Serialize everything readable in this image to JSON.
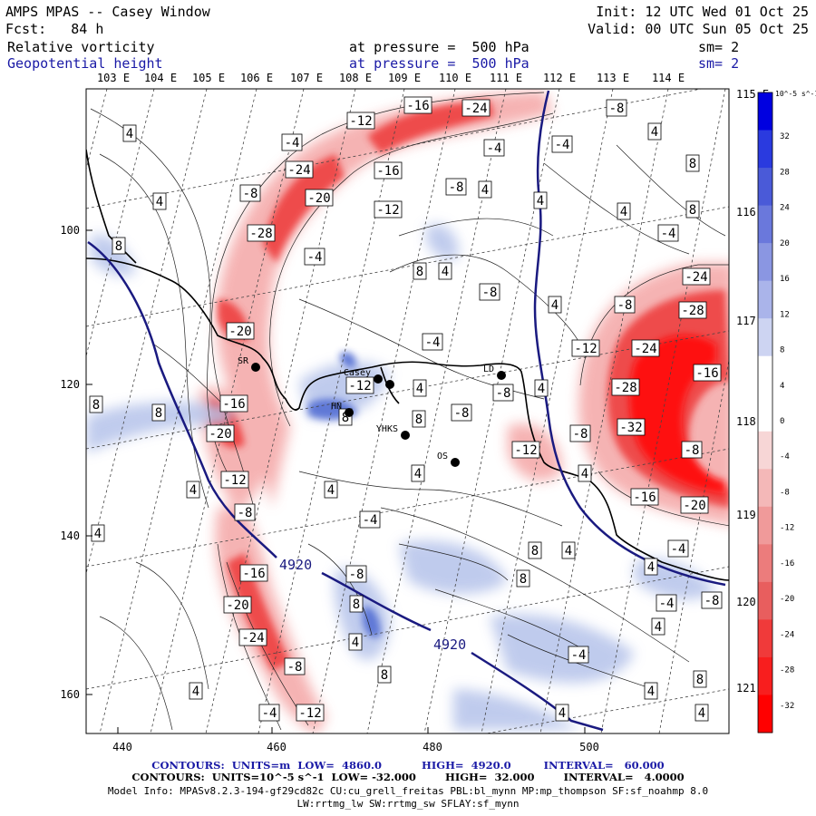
{
  "header": {
    "title": "AMPS MPAS -- Casey Window",
    "init": "Init: 12 UTC Wed 01 Oct 25",
    "fcst": "Fcst:   84 h",
    "valid": "Valid: 00 UTC Sun 05 Oct 25",
    "field1": "Relative vorticity",
    "field1_level": "at pressure =  500 hPa",
    "field1_sm": "sm= 2",
    "field2": "Geopotential height",
    "field2_level": "at pressure =  500 hPa",
    "field2_sm": "sm= 2"
  },
  "map": {
    "lon_labels_top": [
      "103 E",
      "104 E",
      "105 E",
      "106 E",
      "107 E",
      "108 E",
      "109 E",
      "110 E",
      "111 E",
      "112 E",
      "113 E",
      "114 E"
    ],
    "lon_labels_right": [
      "115 E",
      "116 E",
      "117 E",
      "118 E",
      "119 E",
      "120 E",
      "121 E"
    ],
    "x_ticks": [
      "440",
      "460",
      "480",
      "500"
    ],
    "y_ticks": [
      "100",
      "120",
      "140",
      "160"
    ],
    "height_contour_label": "4920",
    "stations": [
      {
        "name": "Casey",
        "x": 417,
        "y": 418
      },
      {
        "name": "",
        "x": 430,
        "y": 424
      },
      {
        "name": "HN",
        "x": 385,
        "y": 455
      },
      {
        "name": "YHKS",
        "x": 447,
        "y": 480
      },
      {
        "name": "OS",
        "x": 502,
        "y": 510
      },
      {
        "name": "LD",
        "x": 553,
        "y": 414
      },
      {
        "name": "SR",
        "x": 282,
        "y": 405
      }
    ],
    "box_labels": [
      {
        "t": "4",
        "x": 143,
        "y": 147
      },
      {
        "t": "4",
        "x": 176,
        "y": 222
      },
      {
        "t": "8",
        "x": 131,
        "y": 271
      },
      {
        "t": "-4",
        "x": 322,
        "y": 157
      },
      {
        "t": "-24",
        "x": 330,
        "y": 187
      },
      {
        "t": "-20",
        "x": 352,
        "y": 218
      },
      {
        "t": "-8",
        "x": 276,
        "y": 213
      },
      {
        "t": "-28",
        "x": 288,
        "y": 257
      },
      {
        "t": "-4",
        "x": 347,
        "y": 283
      },
      {
        "t": "-12",
        "x": 398,
        "y": 133
      },
      {
        "t": "-16",
        "x": 461,
        "y": 116
      },
      {
        "t": "-24",
        "x": 525,
        "y": 119
      },
      {
        "t": "-16",
        "x": 428,
        "y": 188
      },
      {
        "t": "-12",
        "x": 428,
        "y": 231
      },
      {
        "t": "-8",
        "x": 503,
        "y": 206
      },
      {
        "t": "4",
        "x": 535,
        "y": 209
      },
      {
        "t": "-4",
        "x": 545,
        "y": 163
      },
      {
        "t": "-4",
        "x": 620,
        "y": 159
      },
      {
        "t": "4",
        "x": 596,
        "y": 221
      },
      {
        "t": "-8",
        "x": 680,
        "y": 119
      },
      {
        "t": "4",
        "x": 722,
        "y": 145
      },
      {
        "t": "8",
        "x": 764,
        "y": 180
      },
      {
        "t": "4",
        "x": 688,
        "y": 233
      },
      {
        "t": "8",
        "x": 764,
        "y": 231
      },
      {
        "t": "-4",
        "x": 737,
        "y": 257
      },
      {
        "t": "8",
        "x": 463,
        "y": 299
      },
      {
        "t": "4",
        "x": 491,
        "y": 299
      },
      {
        "t": "-8",
        "x": 540,
        "y": 322
      },
      {
        "t": "4",
        "x": 612,
        "y": 336
      },
      {
        "t": "-8",
        "x": 689,
        "y": 336
      },
      {
        "t": "-24",
        "x": 768,
        "y": 305
      },
      {
        "t": "-28",
        "x": 764,
        "y": 342
      },
      {
        "t": "-20",
        "x": 265,
        "y": 365
      },
      {
        "t": "-4",
        "x": 477,
        "y": 377
      },
      {
        "t": "-12",
        "x": 646,
        "y": 384
      },
      {
        "t": "-24",
        "x": 712,
        "y": 384
      },
      {
        "t": "-16",
        "x": 780,
        "y": 411
      },
      {
        "t": "8",
        "x": 106,
        "y": 446
      },
      {
        "t": "8",
        "x": 175,
        "y": 455
      },
      {
        "t": "-16",
        "x": 258,
        "y": 445
      },
      {
        "t": "-20",
        "x": 243,
        "y": 478
      },
      {
        "t": "-12",
        "x": 397,
        "y": 425
      },
      {
        "t": "4",
        "x": 463,
        "y": 428
      },
      {
        "t": "8",
        "x": 381,
        "y": 460
      },
      {
        "t": "8",
        "x": 462,
        "y": 462
      },
      {
        "t": "-8",
        "x": 509,
        "y": 455
      },
      {
        "t": "-8",
        "x": 555,
        "y": 433
      },
      {
        "t": "4",
        "x": 597,
        "y": 428
      },
      {
        "t": "-28",
        "x": 690,
        "y": 427
      },
      {
        "t": "-32",
        "x": 696,
        "y": 471
      },
      {
        "t": "-8",
        "x": 640,
        "y": 478
      },
      {
        "t": "-12",
        "x": 580,
        "y": 496
      },
      {
        "t": "-8",
        "x": 763,
        "y": 496
      },
      {
        "t": "-12",
        "x": 259,
        "y": 529
      },
      {
        "t": "4",
        "x": 213,
        "y": 540
      },
      {
        "t": "4",
        "x": 365,
        "y": 540
      },
      {
        "t": "4",
        "x": 461,
        "y": 522
      },
      {
        "t": "4",
        "x": 645,
        "y": 522
      },
      {
        "t": "-16",
        "x": 711,
        "y": 548
      },
      {
        "t": "-20",
        "x": 766,
        "y": 557
      },
      {
        "t": "-8",
        "x": 270,
        "y": 565
      },
      {
        "t": "-4",
        "x": 408,
        "y": 573
      },
      {
        "t": "4",
        "x": 108,
        "y": 588
      },
      {
        "t": "8",
        "x": 590,
        "y": 607
      },
      {
        "t": "4",
        "x": 627,
        "y": 607
      },
      {
        "t": "-4",
        "x": 748,
        "y": 605
      },
      {
        "t": "4",
        "x": 718,
        "y": 625
      },
      {
        "t": "-16",
        "x": 280,
        "y": 632
      },
      {
        "t": "-8",
        "x": 393,
        "y": 633
      },
      {
        "t": "8",
        "x": 577,
        "y": 638
      },
      {
        "t": "-20",
        "x": 262,
        "y": 667
      },
      {
        "t": "8",
        "x": 393,
        "y": 666
      },
      {
        "t": "-4",
        "x": 735,
        "y": 665
      },
      {
        "t": "-8",
        "x": 785,
        "y": 662
      },
      {
        "t": "4",
        "x": 726,
        "y": 691
      },
      {
        "t": "-24",
        "x": 279,
        "y": 703
      },
      {
        "t": "4",
        "x": 392,
        "y": 708
      },
      {
        "t": "-4",
        "x": 638,
        "y": 722
      },
      {
        "t": "8",
        "x": 424,
        "y": 744
      },
      {
        "t": "-8",
        "x": 325,
        "y": 735
      },
      {
        "t": "8",
        "x": 772,
        "y": 749
      },
      {
        "t": "4",
        "x": 216,
        "y": 762
      },
      {
        "t": "4",
        "x": 718,
        "y": 762
      },
      {
        "t": "-4",
        "x": 297,
        "y": 786
      },
      {
        "t": "-12",
        "x": 342,
        "y": 786
      },
      {
        "t": "4",
        "x": 620,
        "y": 786
      },
      {
        "t": "4",
        "x": 774,
        "y": 786
      }
    ]
  },
  "colorbar": {
    "unit": "10^-5 s^-1",
    "labels": [
      "32",
      "28",
      "24",
      "20",
      "16",
      "12",
      "8",
      "4",
      "0",
      "-4",
      "-8",
      "-12",
      "-16",
      "-20",
      "-24",
      "-28",
      "-32"
    ]
  },
  "footer": {
    "line1": "CONTOURS:  UNITS=m  LOW=  4860.0           HIGH=  4920.0         INTERVAL=   60.000",
    "line2": "CONTOURS:  UNITS=10^-5 s^-1  LOW= -32.000        HIGH=  32.000        INTERVAL=   4.0000",
    "line3": "Model Info: MPASv8.2.3-194-gf29cd82c CU:cu_grell_freitas PBL:bl_mynn MP:mp_thompson SF:sf_noahmp 8.0",
    "line4": "LW:rrtmg_lw SW:rrtmg_sw SFLAY:sf_mynn"
  }
}
